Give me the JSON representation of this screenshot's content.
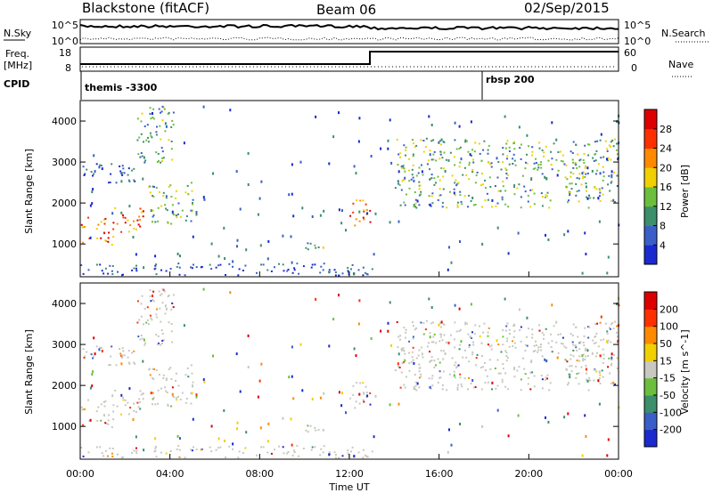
{
  "header": {
    "title": "Blackstone (fitACF)",
    "beam": "Beam 06",
    "date": "02/Sep/2015"
  },
  "top_panels": {
    "nsky_label": "N.Sky",
    "nsky_ticks": [
      "10^5",
      "10^0"
    ],
    "nsearch_label": "N.Search",
    "nsearch_ticks": [
      "10^5",
      "10^0"
    ],
    "freq_label_line1": "Freq.",
    "freq_label_line2": "[MHz]",
    "freq_ticks": [
      "18",
      "8"
    ],
    "nave_label": "Nave",
    "nave_ticks": [
      "60",
      "0"
    ],
    "cpid_label": "CPID",
    "cpid_segments": [
      {
        "name": "themis -3300",
        "start_hour": 0.0
      },
      {
        "name": "rbsp 200",
        "start_hour": 18.3
      }
    ]
  },
  "chart_data": [
    {
      "type": "heatmap",
      "quantity": "Power",
      "colorbar_label": "Power [dB]",
      "colorbar_ticks": [
        "4",
        "8",
        "12",
        "16",
        "20",
        "24",
        "28"
      ],
      "colorbar_range": [
        0,
        32
      ],
      "colors": [
        "#1a2acf",
        "#3a5fc8",
        "#3b8f6a",
        "#6cbf3c",
        "#f0d000",
        "#ff8a00",
        "#ff3000",
        "#dd0000"
      ],
      "ylabel": "Slant Range [km]",
      "yticks": [
        "1000",
        "2000",
        "3000",
        "4000"
      ],
      "ylim": [
        200,
        4500
      ],
      "xlim": [
        0,
        24
      ],
      "features": [
        {
          "t0": 0.0,
          "t1": 1.5,
          "r0": 1000,
          "r1": 1700,
          "level": "high"
        },
        {
          "t0": 1.5,
          "t1": 3.0,
          "r0": 1300,
          "r1": 1900,
          "level": "high"
        },
        {
          "t0": 3.0,
          "t1": 5.0,
          "r0": 1500,
          "r1": 2600,
          "level": "mid"
        },
        {
          "t0": 2.5,
          "t1": 4.2,
          "r0": 3000,
          "r1": 4400,
          "level": "mid"
        },
        {
          "t0": 0.0,
          "t1": 2.5,
          "r0": 2500,
          "r1": 3000,
          "level": "low"
        },
        {
          "t0": 10.0,
          "t1": 11.0,
          "r0": 750,
          "r1": 1100,
          "level": "mid"
        },
        {
          "t0": 12.0,
          "t1": 13.0,
          "r0": 1400,
          "r1": 2100,
          "level": "high"
        },
        {
          "t0": 14.0,
          "t1": 24.0,
          "r0": 1900,
          "r1": 3600,
          "level": "mid"
        },
        {
          "t0": 0.0,
          "t1": 13.0,
          "r0": 250,
          "r1": 550,
          "level": "low"
        }
      ]
    },
    {
      "type": "heatmap",
      "quantity": "Velocity",
      "colorbar_label": "Velocity [m s^-1]",
      "colorbar_ticks": [
        "200",
        "100",
        "50",
        "15",
        "-15",
        "-50",
        "-100",
        "-200"
      ],
      "colorbar_range": [
        -250,
        250
      ],
      "colors": [
        "#1a2acf",
        "#3a5fc8",
        "#3b8f6a",
        "#6cbf3c",
        "#c8c8c0",
        "#f0d000",
        "#ff8a00",
        "#ff3000",
        "#dd0000"
      ],
      "ylabel": "Slant Range [km]",
      "yticks": [
        "1000",
        "2000",
        "3000",
        "4000"
      ],
      "ylim": [
        200,
        4500
      ],
      "xlim": [
        0,
        24
      ],
      "xlabel": "Time UT",
      "xticks": [
        "00:00",
        "04:00",
        "08:00",
        "12:00",
        "16:00",
        "20:00",
        "00:00"
      ]
    }
  ]
}
